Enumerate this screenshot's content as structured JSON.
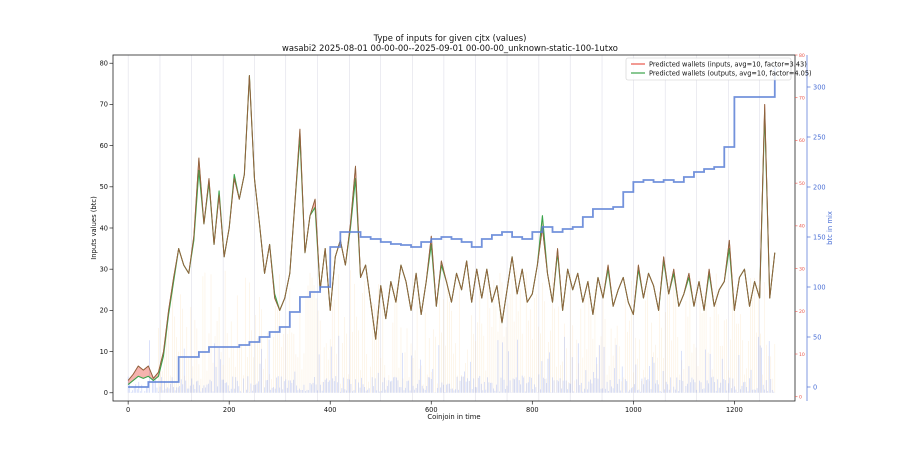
{
  "chart_data": {
    "type": "line",
    "title": "Type of inputs for given cjtx (values)",
    "subtitle": "wasabi2 2025-08-01 00-00-00--2025-09-01 00-00-00_unknown-static-100-1utxo",
    "xlabel": "Coinjoin in time",
    "ylabel": "Inputs values (btc)",
    "y2label": "btc in mix",
    "xlim": [
      -30,
      1320
    ],
    "ylim": [
      -2,
      82
    ],
    "y2lim": [
      -14,
      332
    ],
    "y3lim": [
      -1,
      80
    ],
    "xticks": [
      "0",
      "200",
      "400",
      "600",
      "800",
      "1000",
      "1200"
    ],
    "yticks": [
      "0",
      "10",
      "20",
      "30",
      "40",
      "50",
      "60",
      "70",
      "80"
    ],
    "y2ticks": [
      "0",
      "50",
      "100",
      "150",
      "200",
      "250",
      "300"
    ],
    "y3ticks": [
      "0",
      "10",
      "20",
      "30",
      "40",
      "50",
      "60",
      "70",
      "80"
    ],
    "legend_position": "top-right",
    "grid": false,
    "colors": {
      "inputs": "#e8564b",
      "outputs": "#3aa34a",
      "overlap": "#6e6a3a",
      "btc_in_mix": "#5b7fd6",
      "bars_blue": "#8aa0f0",
      "bars_orange": "#f5c27a",
      "event_lines": "#c8c8d8",
      "right_axis_2": "#e8564b",
      "right_axis_1": "#4a6fd6"
    },
    "series": [
      {
        "name": "Predicted wallets (inputs, avg=10, factor=3.43)",
        "x": [
          0,
          10,
          20,
          30,
          40,
          50,
          60,
          70,
          80,
          90,
          100,
          110,
          120,
          130,
          140,
          150,
          160,
          170,
          180,
          190,
          200,
          210,
          220,
          230,
          240,
          250,
          260,
          270,
          280,
          290,
          300,
          310,
          320,
          330,
          340,
          350,
          360,
          370,
          380,
          390,
          400,
          410,
          420,
          430,
          440,
          450,
          460,
          470,
          480,
          490,
          500,
          510,
          520,
          530,
          540,
          550,
          560,
          570,
          580,
          590,
          600,
          610,
          620,
          630,
          640,
          650,
          660,
          670,
          680,
          690,
          700,
          710,
          720,
          730,
          740,
          750,
          760,
          770,
          780,
          790,
          800,
          810,
          820,
          830,
          840,
          850,
          860,
          870,
          880,
          890,
          900,
          910,
          920,
          930,
          940,
          950,
          960,
          970,
          980,
          990,
          1000,
          1010,
          1020,
          1030,
          1040,
          1050,
          1060,
          1070,
          1080,
          1090,
          1100,
          1110,
          1120,
          1130,
          1140,
          1150,
          1160,
          1170,
          1180,
          1190,
          1200,
          1210,
          1220,
          1230,
          1240,
          1250,
          1260,
          1270,
          1280
        ],
        "values": [
          3,
          4.5,
          6.5,
          5.5,
          6.5,
          3.5,
          5,
          10,
          20,
          28,
          35,
          31,
          29,
          38,
          57,
          41,
          52,
          36,
          48,
          33,
          40,
          52,
          47,
          53,
          77,
          52,
          41,
          29,
          36,
          23,
          20,
          23,
          29,
          46,
          64,
          34,
          43,
          47,
          25,
          35,
          20,
          33,
          37,
          31,
          41,
          55,
          28,
          31,
          22,
          13,
          26,
          18,
          27,
          22,
          31,
          27,
          20,
          29,
          19,
          27,
          38,
          21,
          32,
          27,
          22,
          29,
          25,
          32,
          22,
          30,
          23,
          30,
          22,
          26,
          17,
          25,
          33,
          24,
          30,
          22,
          24,
          31,
          40,
          29,
          22,
          35,
          20,
          30,
          25,
          29,
          22,
          27,
          19,
          28,
          23,
          31,
          21,
          25,
          28,
          22,
          19,
          31,
          23,
          29,
          26,
          20,
          33,
          24,
          30,
          21,
          24,
          29,
          21,
          27,
          20,
          30,
          21,
          25,
          27,
          37,
          20,
          28,
          30,
          21,
          27,
          23,
          70,
          23,
          34
        ]
      },
      {
        "name": "Predicted wallets (outputs, avg=10, factor=4.05)",
        "x": [
          0,
          10,
          20,
          30,
          40,
          50,
          60,
          70,
          80,
          90,
          100,
          110,
          120,
          130,
          140,
          150,
          160,
          170,
          180,
          190,
          200,
          210,
          220,
          230,
          240,
          250,
          260,
          270,
          280,
          290,
          300,
          310,
          320,
          330,
          340,
          350,
          360,
          370,
          380,
          390,
          400,
          410,
          420,
          430,
          440,
          450,
          460,
          470,
          480,
          490,
          500,
          510,
          520,
          530,
          540,
          550,
          560,
          570,
          580,
          590,
          600,
          610,
          620,
          630,
          640,
          650,
          660,
          670,
          680,
          690,
          700,
          710,
          720,
          730,
          740,
          750,
          760,
          770,
          780,
          790,
          800,
          810,
          820,
          830,
          840,
          850,
          860,
          870,
          880,
          890,
          900,
          910,
          920,
          930,
          940,
          950,
          960,
          970,
          980,
          990,
          1000,
          1010,
          1020,
          1030,
          1040,
          1050,
          1060,
          1070,
          1080,
          1090,
          1100,
          1110,
          1120,
          1130,
          1140,
          1150,
          1160,
          1170,
          1180,
          1190,
          1200,
          1210,
          1220,
          1230,
          1240,
          1250,
          1260,
          1270,
          1280
        ],
        "values": [
          2,
          3,
          4,
          3.5,
          4,
          3,
          4,
          9,
          19,
          27,
          35,
          31,
          29,
          37,
          54,
          41,
          51,
          36,
          49,
          33,
          40,
          53,
          47,
          53,
          77,
          52,
          41,
          29,
          36,
          24,
          20,
          23,
          29,
          46,
          62,
          34,
          43,
          45,
          25,
          35,
          20,
          33,
          37,
          31,
          40,
          52,
          28,
          31,
          22,
          13,
          26,
          18,
          27,
          22,
          31,
          27,
          20,
          29,
          19,
          27,
          36,
          21,
          31,
          27,
          22,
          29,
          25,
          32,
          22,
          30,
          23,
          30,
          22,
          26,
          17,
          25,
          33,
          24,
          30,
          22,
          24,
          31,
          43,
          29,
          22,
          34,
          20,
          30,
          25,
          29,
          22,
          27,
          19,
          28,
          23,
          30,
          21,
          25,
          28,
          22,
          19,
          30,
          23,
          29,
          26,
          20,
          32,
          24,
          29,
          21,
          24,
          28,
          21,
          27,
          20,
          29,
          21,
          25,
          27,
          35,
          20,
          28,
          30,
          21,
          27,
          23,
          68,
          23,
          34
        ]
      },
      {
        "name": "btc in mix",
        "axis": "right",
        "x": [
          0,
          20,
          40,
          60,
          80,
          100,
          120,
          140,
          160,
          180,
          200,
          220,
          240,
          260,
          280,
          300,
          320,
          340,
          360,
          380,
          400,
          420,
          440,
          460,
          480,
          500,
          520,
          540,
          560,
          580,
          600,
          620,
          640,
          660,
          680,
          700,
          720,
          740,
          760,
          780,
          800,
          820,
          840,
          860,
          880,
          900,
          920,
          940,
          960,
          980,
          1000,
          1020,
          1040,
          1060,
          1080,
          1100,
          1120,
          1140,
          1160,
          1180,
          1200,
          1220,
          1240,
          1260,
          1280
        ],
        "values": [
          0,
          0,
          5,
          5,
          5,
          30,
          30,
          35,
          40,
          40,
          40,
          42,
          45,
          50,
          55,
          60,
          75,
          90,
          95,
          100,
          140,
          155,
          155,
          150,
          148,
          145,
          143,
          142,
          140,
          145,
          148,
          150,
          148,
          145,
          140,
          148,
          152,
          155,
          150,
          148,
          155,
          160,
          155,
          158,
          160,
          170,
          178,
          178,
          180,
          195,
          205,
          207,
          205,
          207,
          205,
          210,
          215,
          218,
          220,
          240,
          290,
          290,
          290,
          290,
          320
        ]
      }
    ],
    "event_lines_x": [
      0,
      63,
      125,
      188,
      250,
      312,
      375,
      438,
      500,
      563,
      625,
      688,
      750,
      813,
      875,
      938,
      1000,
      1063,
      1125,
      1188,
      1250
    ]
  }
}
